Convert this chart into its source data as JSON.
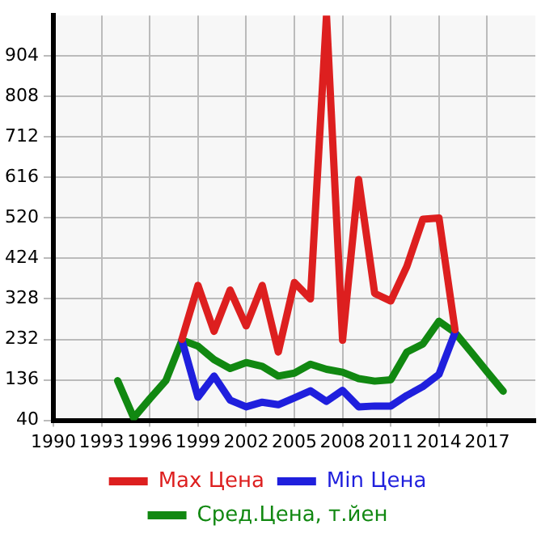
{
  "chart_data": {
    "type": "line",
    "x": [
      1994,
      1995,
      1996,
      1997,
      1998,
      1999,
      2000,
      2001,
      2002,
      2003,
      2004,
      2005,
      2006,
      2007,
      2008,
      2009,
      2010,
      2011,
      2012,
      2013,
      2014,
      2015,
      2016,
      2017,
      2018
    ],
    "series": [
      {
        "name": "Max Цена",
        "color": "#dd1f1f",
        "values": [
          null,
          null,
          null,
          null,
          232,
          360,
          251,
          349,
          264,
          360,
          202,
          367,
          328,
          1000,
          230,
          611,
          341,
          323,
          405,
          517,
          520,
          255,
          null,
          null,
          null
        ]
      },
      {
        "name": "Min Цена",
        "color": "#1f1fdd",
        "values": [
          null,
          null,
          null,
          null,
          230,
          95,
          145,
          88,
          72,
          83,
          77,
          93,
          110,
          85,
          111,
          72,
          74,
          74,
          99,
          120,
          149,
          248,
          null,
          null,
          null
        ]
      },
      {
        "name": "Сред.Цена, т.йен",
        "color": "#118811",
        "values": [
          134,
          46,
          91,
          134,
          230,
          216,
          184,
          163,
          177,
          168,
          145,
          152,
          173,
          161,
          154,
          139,
          133,
          136,
          202,
          221,
          275,
          248,
          202,
          155,
          109
        ]
      }
    ],
    "xlim": [
      1990,
      2020
    ],
    "xticks": [
      1990,
      1993,
      1996,
      1999,
      2002,
      2005,
      2008,
      2011,
      2014,
      2017
    ],
    "ylim": [
      40,
      1000
    ],
    "yticks": [
      40,
      136,
      232,
      328,
      424,
      520,
      616,
      712,
      808,
      904
    ],
    "grid": true,
    "legend": "bottom",
    "marker": "none",
    "line_style": "solid"
  }
}
